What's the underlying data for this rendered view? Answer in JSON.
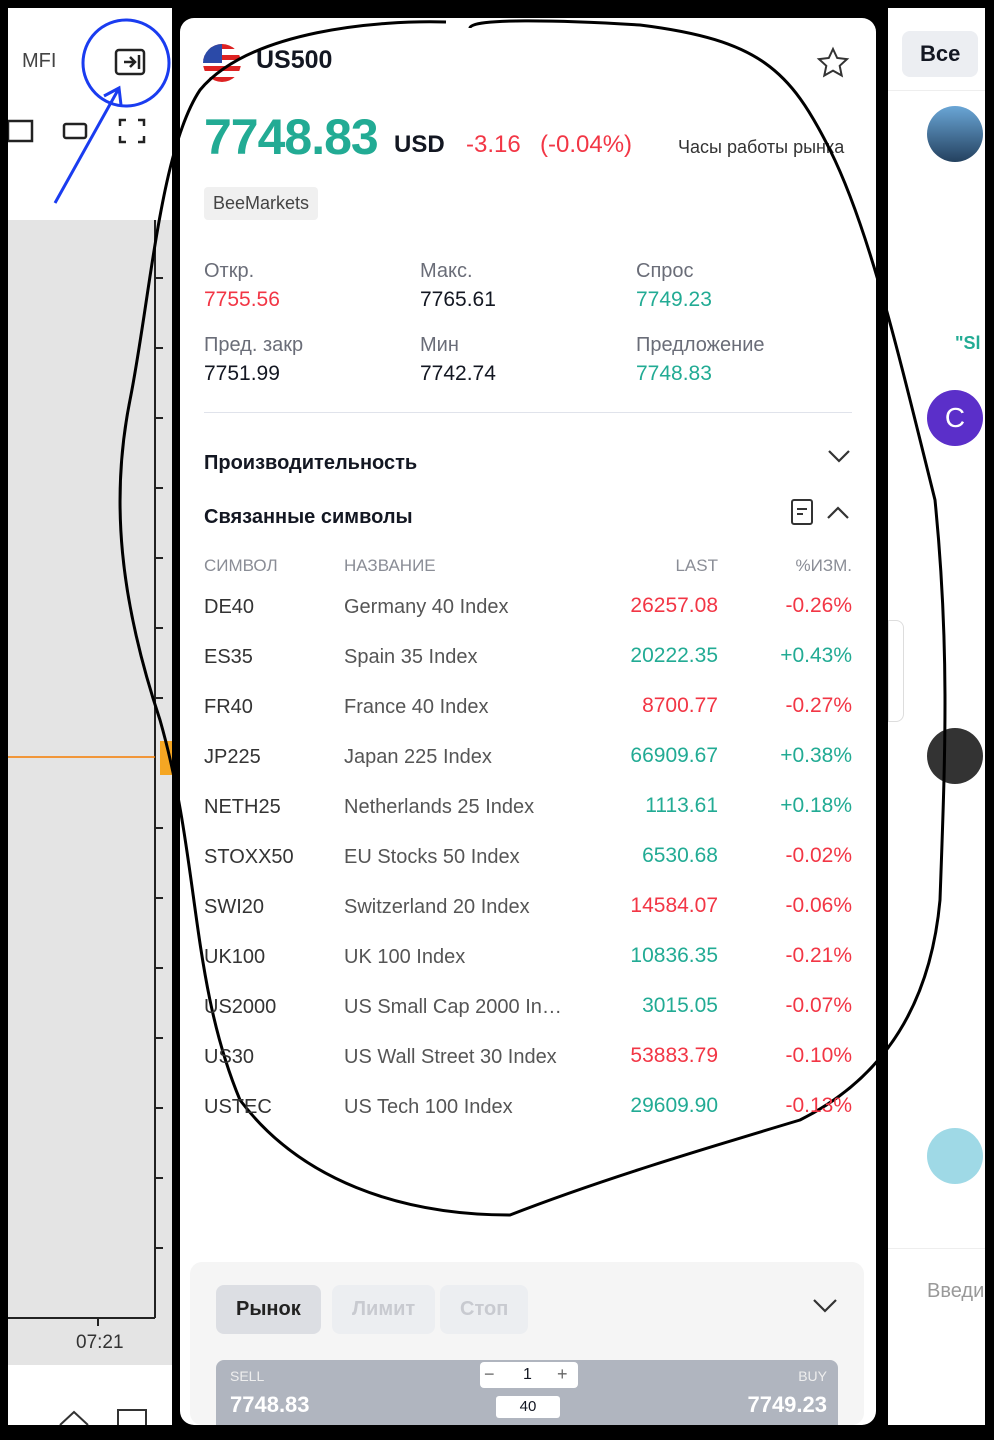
{
  "left_panel": {
    "indicator": "MFI",
    "time_label": "07:21"
  },
  "symbol": {
    "name": "US500",
    "price": "7748.83",
    "currency": "USD",
    "change": "-3.16",
    "change_pct": "(-0.04%)",
    "market_hours": "Часы работы рынка",
    "broker": "BeeMarkets"
  },
  "stats": [
    {
      "label": "Откр.",
      "value": "7755.56",
      "color": "#f23645"
    },
    {
      "label": "Макс.",
      "value": "7765.61",
      "color": "#131722"
    },
    {
      "label": "Спрос",
      "value": "7749.23",
      "color": "#22ab94"
    },
    {
      "label": "Пред. закр",
      "value": "7751.99",
      "color": "#131722"
    },
    {
      "label": "Мин",
      "value": "7742.74",
      "color": "#131722"
    },
    {
      "label": "Предложение",
      "value": "7748.83",
      "color": "#22ab94"
    }
  ],
  "sections": {
    "performance": "Производительность",
    "related": "Связанные символы"
  },
  "table": {
    "headers": [
      "СИМВОЛ",
      "НАЗВАНИЕ",
      "LAST",
      "%ИЗМ."
    ],
    "rows": [
      [
        "DE40",
        "Germany 40 Index",
        "26257.08",
        "-0.26%"
      ],
      [
        "ES35",
        "Spain 35 Index",
        "20222.35",
        "+0.43%"
      ],
      [
        "FR40",
        "France 40 Index",
        "8700.77",
        "-0.27%"
      ],
      [
        "JP225",
        "Japan 225 Index",
        "66909.67",
        "+0.38%"
      ],
      [
        "NETH25",
        "Netherlands 25 Index",
        "1113.61",
        "+0.18%"
      ],
      [
        "STOXX50",
        "EU Stocks 50 Index",
        "6530.68",
        "-0.02%"
      ],
      [
        "SWI20",
        "Switzerland 20 Index",
        "14584.07",
        "-0.06%"
      ],
      [
        "UK100",
        "UK 100 Index",
        "10836.35",
        "-0.21%"
      ],
      [
        "US2000",
        "US Small Cap 2000 In…",
        "3015.05",
        "-0.07%"
      ],
      [
        "US30",
        "US Wall Street 30 Index",
        "53883.79",
        "-0.10%"
      ],
      [
        "USTEC",
        "US Tech 100 Index",
        "29609.90",
        "-0.13%"
      ]
    ],
    "last_colors": [
      "#f23645",
      "#22ab94",
      "#f23645",
      "#22ab94",
      "#22ab94",
      "#22ab94",
      "#f23645",
      "#22ab94",
      "#22ab94",
      "#f23645",
      "#22ab94"
    ]
  },
  "order": {
    "tabs": [
      "Рынок",
      "Лимит",
      "Стоп"
    ],
    "sell_label": "SELL",
    "sell_price": "7748.83",
    "buy_label": "BUY",
    "buy_price": "7749.23",
    "quantity": "1",
    "lots": "40"
  },
  "right_panel": {
    "filter": "Все",
    "avatar_letter": "C",
    "snippet": "\"Sl",
    "input_placeholder": "Введи"
  }
}
